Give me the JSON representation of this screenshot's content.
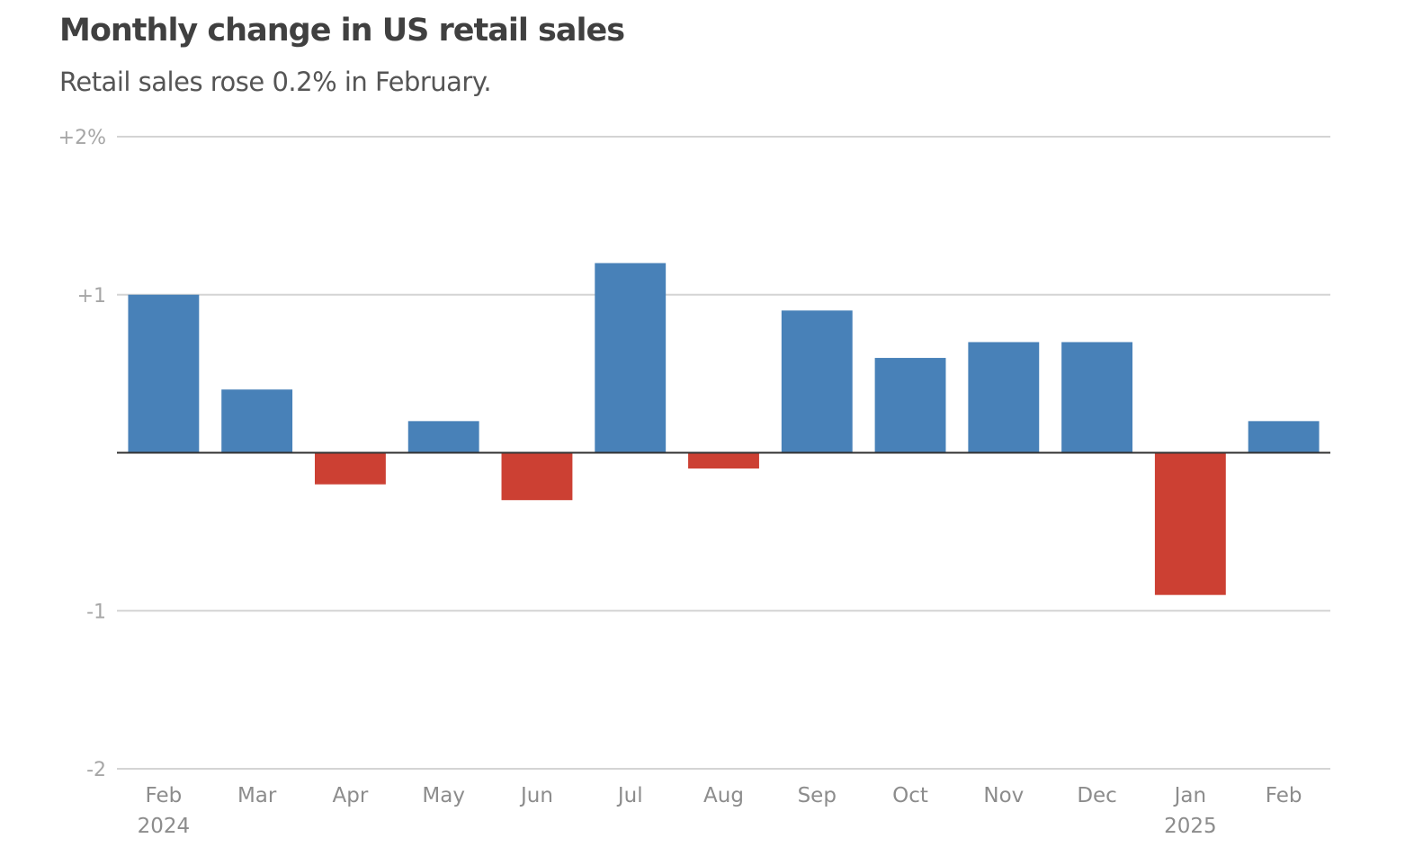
{
  "header": {
    "title": "Monthly change in US retail sales",
    "subtitle": "Retail sales rose 0.2% in February."
  },
  "colors": {
    "positive": "#4881b8",
    "negative": "#cc4033",
    "grid": "#d4d4d4",
    "zero_line": "#333333"
  },
  "chart_data": {
    "type": "bar",
    "title": "Monthly change in US retail sales",
    "subtitle": "Retail sales rose 0.2% in February.",
    "xlabel": "",
    "ylabel": "",
    "ylim": [
      -2,
      2
    ],
    "grid": true,
    "legend": "none",
    "yticks": [
      {
        "value": 2,
        "label": "+2%"
      },
      {
        "value": 1,
        "label": "+1"
      },
      {
        "value": 0,
        "label": ""
      },
      {
        "value": -1,
        "label": "-1"
      },
      {
        "value": -2,
        "label": "-2"
      }
    ],
    "categories": [
      "Feb",
      "Mar",
      "Apr",
      "May",
      "Jun",
      "Jul",
      "Aug",
      "Sep",
      "Oct",
      "Nov",
      "Dec",
      "Jan",
      "Feb"
    ],
    "category_sublabels": [
      "2024",
      "",
      "",
      "",
      "",
      "",
      "",
      "",
      "",
      "",
      "",
      "2025",
      ""
    ],
    "values": [
      1.0,
      0.4,
      -0.2,
      0.2,
      -0.3,
      1.2,
      -0.1,
      0.9,
      0.6,
      0.7,
      0.7,
      -0.9,
      0.2
    ]
  }
}
